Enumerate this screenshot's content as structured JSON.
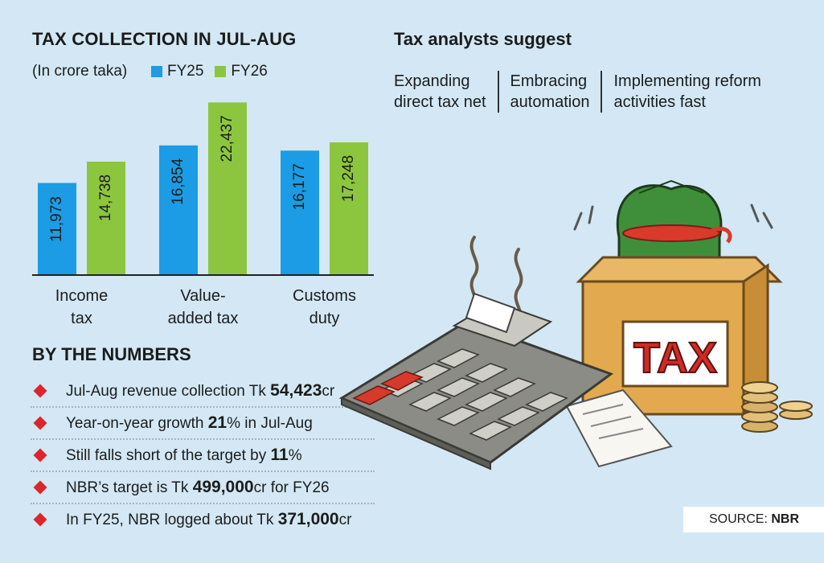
{
  "chart_data": {
    "type": "bar",
    "title": "TAX COLLECTION IN JUL-AUG",
    "subtitle": "(In crore taka)",
    "categories": [
      [
        "Income",
        "tax"
      ],
      [
        "Value-",
        "added tax"
      ],
      [
        "Customs",
        "duty"
      ]
    ],
    "series": [
      {
        "name": "FY25",
        "values": [
          11973,
          16854,
          16177
        ],
        "labels": [
          "11,973",
          "16,854",
          "16,177"
        ],
        "color": "#1b9ce4"
      },
      {
        "name": "FY26",
        "values": [
          14738,
          22437,
          17248
        ],
        "labels": [
          "14,738",
          "22,437",
          "17,248"
        ],
        "color": "#8cc63f"
      }
    ],
    "ylim": [
      0,
      23000
    ],
    "legend": "top-left",
    "grid": false
  },
  "numbers": {
    "title": "BY THE NUMBERS",
    "items": [
      {
        "pre": "Jul-Aug revenue collection Tk ",
        "bold": "54,423",
        "post": "cr"
      },
      {
        "pre": "Year-on-year growth ",
        "bold": "21",
        "post": "% in Jul-Aug"
      },
      {
        "pre": "Still falls short of the target by ",
        "bold": "11",
        "post": "%"
      },
      {
        "pre": "NBR’s target is Tk ",
        "bold": "499,000",
        "post": "cr for FY26"
      },
      {
        "pre": "In FY25, NBR logged about Tk ",
        "bold": "371,000",
        "post": "cr"
      }
    ]
  },
  "analysts": {
    "title": "Tax analysts suggest",
    "items": [
      {
        "line1": "Expanding",
        "line2": "direct tax net"
      },
      {
        "line1": "Embracing",
        "line2": "automation"
      },
      {
        "line1": "Implementing reform",
        "line2": "activities fast"
      }
    ]
  },
  "illustration": {
    "box_label": "TAX"
  },
  "source": {
    "label": "SOURCE: ",
    "name": "NBR"
  },
  "colors": {
    "background": "#d3e8f4",
    "bullet": "#e0242b",
    "fy25": "#1b9ce4",
    "fy26": "#8cc63f"
  }
}
